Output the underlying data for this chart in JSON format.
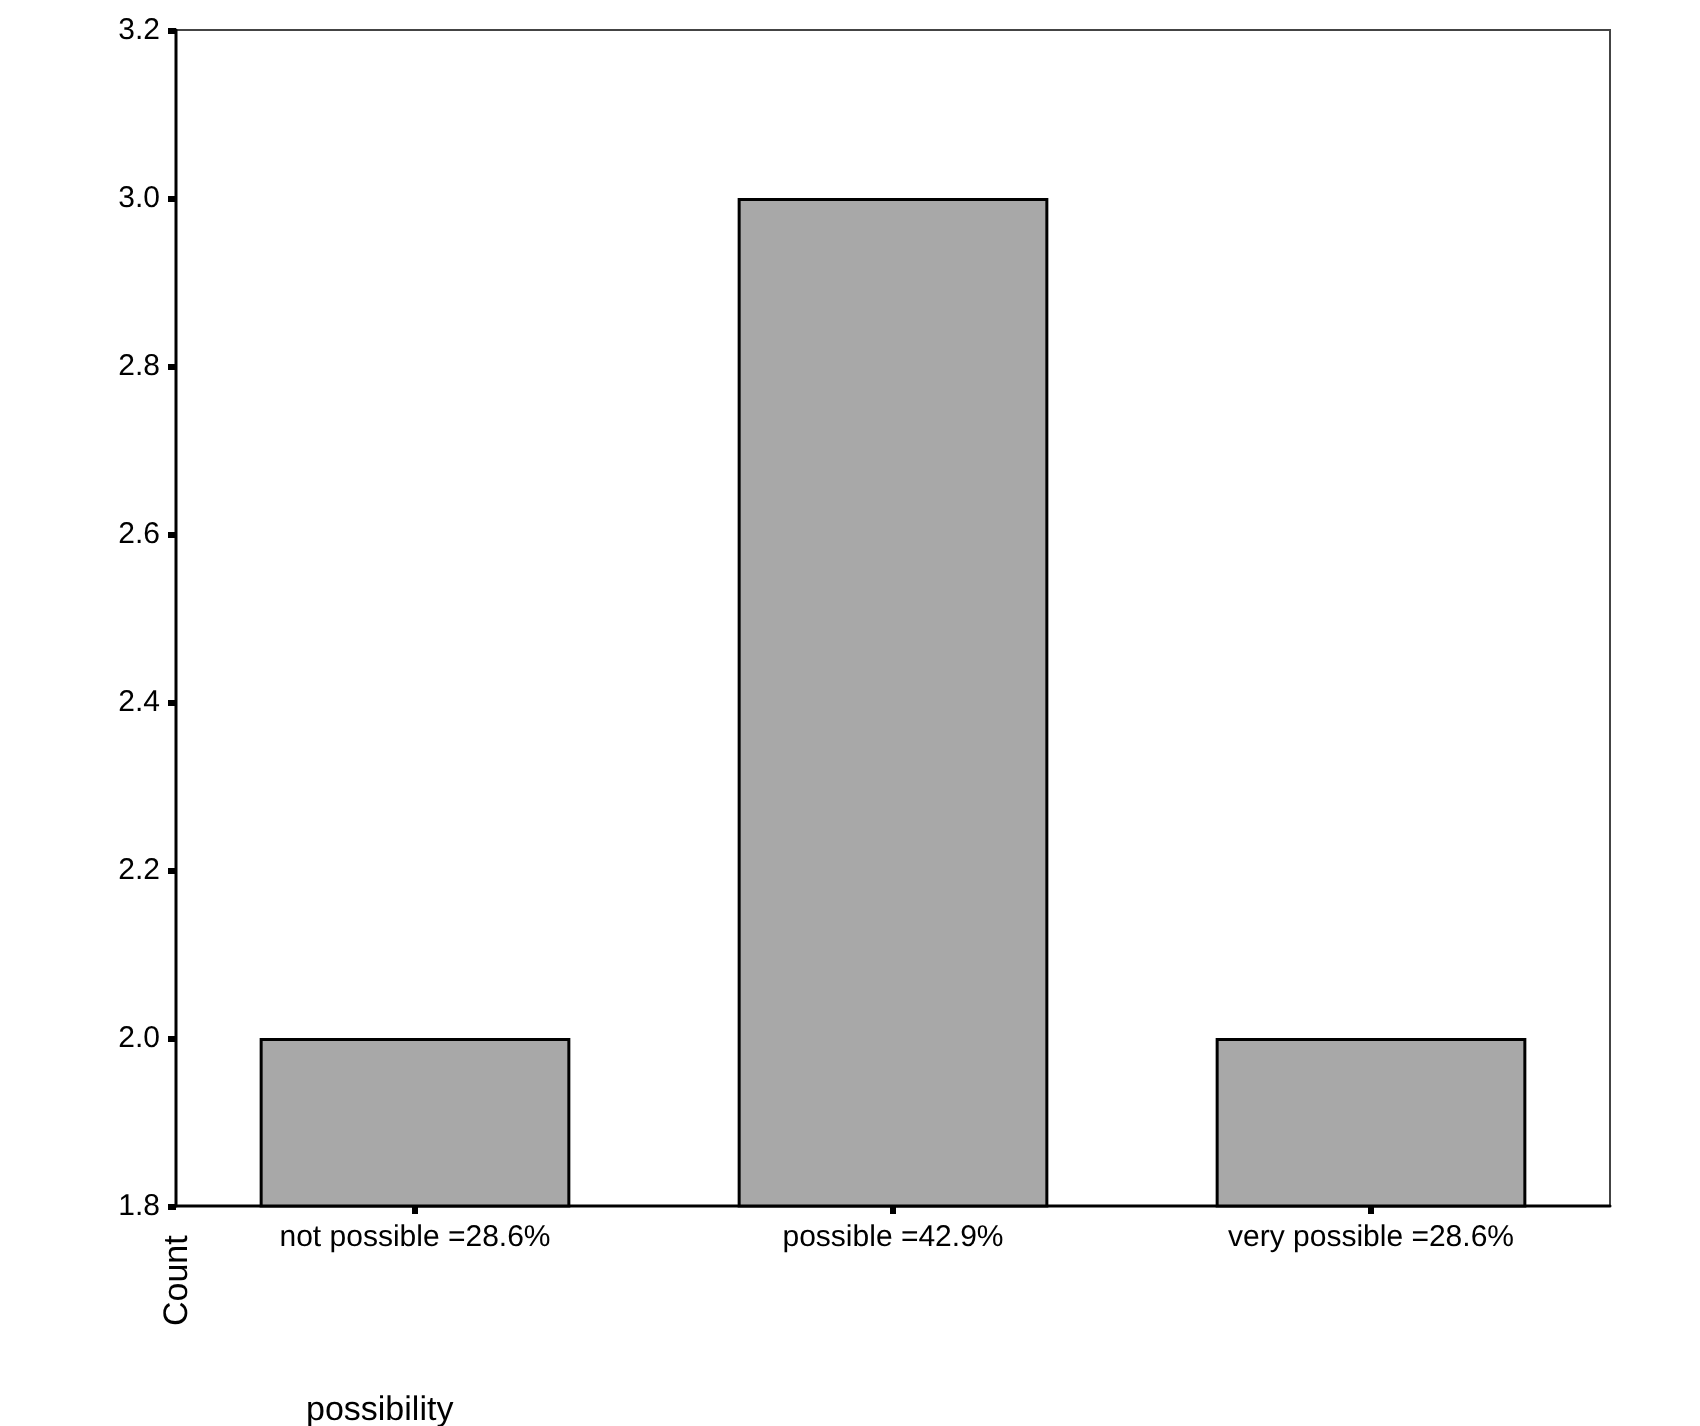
{
  "chart_data": {
    "type": "bar",
    "xlabel": "possibility",
    "ylabel": "Count",
    "categories": [
      "not possible =28.6%",
      "possible =42.9%",
      "very possible =28.6%"
    ],
    "values": [
      2,
      3,
      2
    ],
    "color": "#a8a8a8",
    "ylim": [
      1.8,
      3.2
    ],
    "yticks": [
      {
        "value": 1.8,
        "label": "1.8"
      },
      {
        "value": 2.0,
        "label": "2.0"
      },
      {
        "value": 2.2,
        "label": "2.2"
      },
      {
        "value": 2.4,
        "label": "2.4"
      },
      {
        "value": 2.6,
        "label": "2.6"
      },
      {
        "value": 2.8,
        "label": "2.8"
      },
      {
        "value": 3.0,
        "label": "3.0"
      },
      {
        "value": 3.2,
        "label": "3.2"
      }
    ],
    "grid": false
  }
}
